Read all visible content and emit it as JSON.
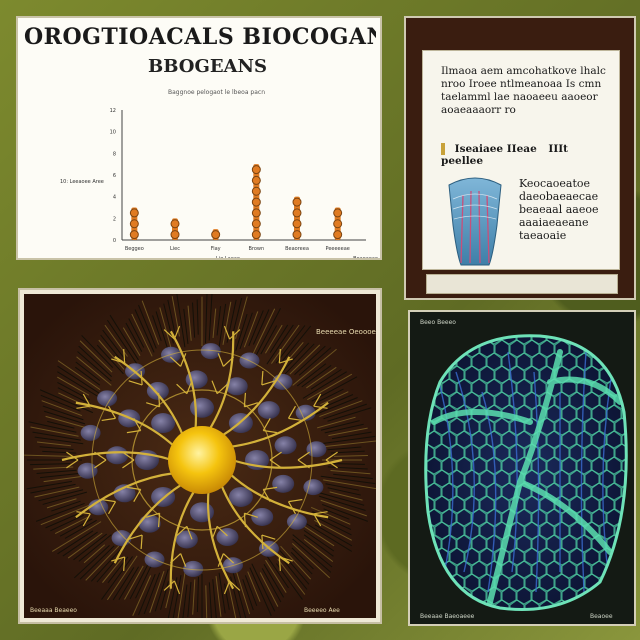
{
  "page": {
    "title": "OROGTIOACALS BIOCOGANCHIE",
    "subtitle": "BBOGEANS",
    "caption": "Baggnoe pelogaot le lbeoa pacn"
  },
  "chart_data": {
    "type": "bar",
    "categories": [
      "Beggeo",
      "Liec",
      "Fiay",
      "Brown",
      "Beaoreea",
      "Peeeeeae"
    ],
    "values": [
      3,
      2,
      1,
      7,
      4,
      3
    ],
    "ylim": [
      0,
      12
    ],
    "ylabel": "10: Leeaoee Aree",
    "xlabel": "Lie Laeae",
    "corner_label": "Beaeaeae",
    "y_ticks": [
      "0",
      "2",
      "4",
      "6",
      "8",
      "10",
      "12"
    ],
    "bar_color": "#e07b22",
    "cap_color": "#7a4412"
  },
  "info": {
    "paragraph": "Ilmaoa aem amcohatkove lhalc nroo Iroee ntlmeanoaa Is cmn taelamml lae naoaeeu aaoeor aoaeaaaorr ro",
    "row_left": "Iseaiaee IIeae",
    "row_right": "IIIt peellee",
    "caption": "Keocaoeatoe daeobaeaecae beaeaal aaeoe aaaiaeaeane taeaoaie"
  },
  "network": {
    "label_top": "Beeeeae Oeoooe",
    "label_bottom_left": "Beeaaa Beaeeo",
    "label_bottom_right": "Beeeeo Aee",
    "core_color": "#f5c40f",
    "branch_color": "#d3b13a"
  },
  "mesh": {
    "label_tl": "Beeo Beeeo",
    "label_bl": "Beeaae Baeoaeee",
    "label_br": "Beaoee",
    "mesh_color": "#4fd0a3",
    "vein_color": "#3a6cd0"
  }
}
